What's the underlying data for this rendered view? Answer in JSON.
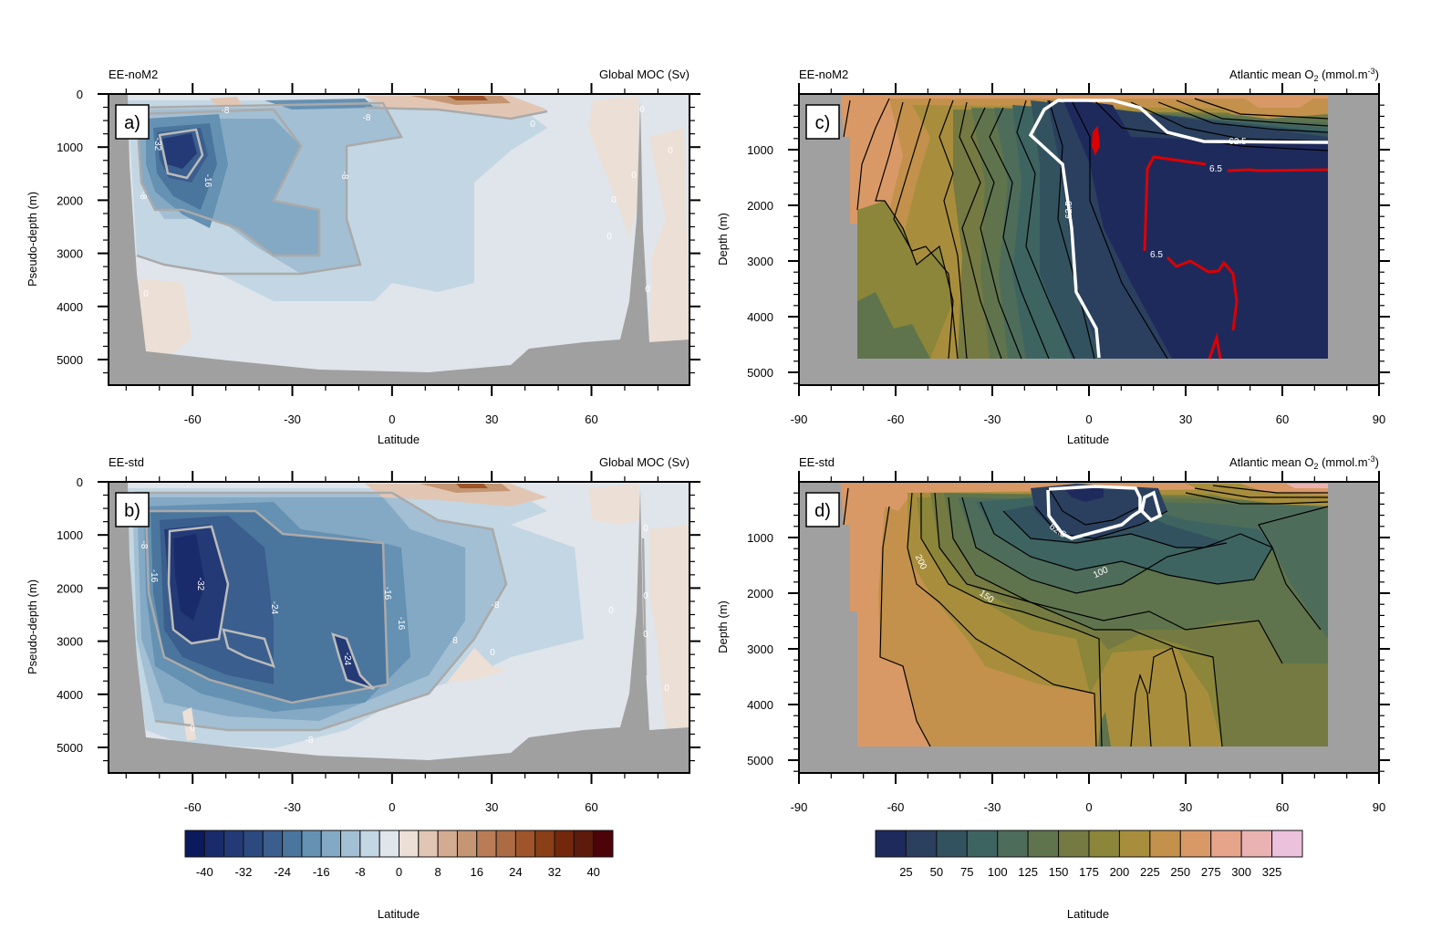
{
  "figure": {
    "panels": [
      {
        "id": "a",
        "label": "a)",
        "run": "EE-noM2",
        "title": "Global MOC (Sv)",
        "xlabel": "Latitude",
        "ylabel": "Pseudo-depth (m)",
        "xticks": [
          -60,
          -30,
          0,
          30,
          60
        ],
        "yticks": [
          0,
          1000,
          2000,
          3000,
          4000,
          5000
        ],
        "show_zero_ytick": true
      },
      {
        "id": "b",
        "label": "b)",
        "run": "EE-std",
        "title": "Global MOC (Sv)",
        "xlabel": "",
        "ylabel": "Pseudo-depth (m)",
        "xticks": [
          -60,
          -30,
          0,
          30,
          60
        ],
        "yticks": [
          0,
          1000,
          2000,
          3000,
          4000,
          5000
        ],
        "show_zero_ytick": true
      },
      {
        "id": "c",
        "label": "c)",
        "run": "EE-noM2",
        "title": "Atlantic mean O",
        "title_sub": "2",
        "title_unit": " (mmol.m",
        "title_sup": "-3",
        "title_end": ")",
        "xlabel": "Latitude",
        "ylabel": "Depth (m)",
        "xticks": [
          -90,
          -60,
          -30,
          0,
          30,
          60,
          90
        ],
        "yticks": [
          1000,
          2000,
          3000,
          4000,
          5000
        ],
        "show_zero_ytick": false
      },
      {
        "id": "d",
        "label": "d)",
        "run": "EE-std",
        "title": "Atlantic mean O",
        "title_sub": "2",
        "title_unit": " (mmol.m",
        "title_sup": "-3",
        "title_end": ")",
        "xlabel": "",
        "ylabel": "Depth (m)",
        "xticks": [
          -90,
          -60,
          -30,
          0,
          30,
          60,
          90
        ],
        "yticks": [
          1000,
          2000,
          3000,
          4000,
          5000
        ],
        "show_zero_ytick": false
      }
    ],
    "colorbars": [
      {
        "id": "moc",
        "labels": [
          "-40",
          "-32",
          "-24",
          "-16",
          "-8",
          "0",
          "8",
          "16",
          "24",
          "32",
          "40"
        ],
        "caption": "Latitude",
        "colors": [
          "#0b1a5c",
          "#1a2b6b",
          "#233a76",
          "#2c4a80",
          "#3a5e8e",
          "#4a769d",
          "#6591b3",
          "#84a9c4",
          "#a3bfd3",
          "#c3d6e3",
          "#dfe5ea",
          "#ecdfd6",
          "#e2c6b4",
          "#d3ab90",
          "#c59673",
          "#b97c56",
          "#ac6b42",
          "#9f5529",
          "#8a3f17",
          "#73270b",
          "#5e1a0a",
          "#4d0409"
        ]
      },
      {
        "id": "o2",
        "labels": [
          "25",
          "50",
          "75",
          "100",
          "125",
          "150",
          "175",
          "200",
          "225",
          "250",
          "275",
          "300",
          "325"
        ],
        "caption": "Latitude",
        "colors": [
          "#1f2a5c",
          "#2b405f",
          "#33525f",
          "#3e6461",
          "#4e6c5a",
          "#5f744d",
          "#747a42",
          "#8b8639",
          "#a88e3c",
          "#c3914b",
          "#d99967",
          "#e6a58a",
          "#eab2b2",
          "#ecc1dc"
        ]
      }
    ]
  },
  "chart_data": [
    {
      "type": "heatmap",
      "panel": "a",
      "title": "Global MOC (Sv)",
      "subtitle": "EE-noM2",
      "xlabel": "Latitude",
      "ylabel": "Pseudo-depth (m)",
      "xlim": [
        -85,
        90
      ],
      "ylim": [
        5500,
        0
      ],
      "x_ticks": [
        -60,
        -30,
        0,
        30,
        60
      ],
      "y_ticks": [
        0,
        1000,
        2000,
        3000,
        4000,
        5000
      ],
      "contour_labels": [
        "-32",
        "-16",
        "-8",
        "-8",
        "-8",
        "-8",
        "0",
        "0",
        "0",
        "0",
        "0",
        "0",
        "0"
      ],
      "features": {
        "min_cell": {
          "lat": -67,
          "depth": 900,
          "value": -36
        },
        "max_positive_cell": {
          "lat": 20,
          "depth": 150,
          "value": 28
        }
      }
    },
    {
      "type": "heatmap",
      "panel": "b",
      "title": "Global MOC (Sv)",
      "subtitle": "EE-std",
      "xlabel": "Latitude",
      "ylabel": "Pseudo-depth (m)",
      "xlim": [
        -85,
        90
      ],
      "ylim": [
        5500,
        0
      ],
      "x_ticks": [
        -60,
        -30,
        0,
        30,
        60
      ],
      "y_ticks": [
        0,
        1000,
        2000,
        3000,
        4000,
        5000
      ],
      "contour_labels": [
        "-32",
        "-24",
        "-24",
        "-16",
        "-16",
        "-16",
        "-8",
        "-8",
        "-8",
        "-8",
        "0",
        "0",
        "0",
        "0",
        "0",
        "0",
        "0"
      ],
      "features": {
        "min_cell": {
          "lat": -62,
          "depth": 1900,
          "value": -36
        },
        "max_positive_cell": {
          "lat": 20,
          "depth": 150,
          "value": 28
        }
      }
    },
    {
      "type": "heatmap",
      "panel": "c",
      "title": "Atlantic mean O2 (mmol.m-3)",
      "subtitle": "EE-noM2",
      "xlabel": "Latitude",
      "ylabel": "Depth (m)",
      "xlim": [
        -90,
        90
      ],
      "ylim": [
        5300,
        0
      ],
      "x_ticks": [
        -90,
        -60,
        -30,
        0,
        30,
        60,
        90
      ],
      "y_ticks": [
        1000,
        2000,
        3000,
        4000,
        5000
      ],
      "highlight_contours": [
        {
          "value": 62.5,
          "color": "#ffffff"
        },
        {
          "value": 6.5,
          "color": "#dd0000"
        }
      ],
      "colorbar_levels": [
        25,
        50,
        75,
        100,
        125,
        150,
        175,
        200,
        225,
        250,
        275,
        300,
        325
      ]
    },
    {
      "type": "heatmap",
      "panel": "d",
      "title": "Atlantic mean O2 (mmol.m-3)",
      "subtitle": "EE-std",
      "xlabel": "Latitude",
      "ylabel": "Depth (m)",
      "xlim": [
        -90,
        90
      ],
      "ylim": [
        5300,
        0
      ],
      "x_ticks": [
        -90,
        -60,
        -30,
        0,
        30,
        60,
        90
      ],
      "y_ticks": [
        1000,
        2000,
        3000,
        4000,
        5000
      ],
      "contour_labels": [
        "62.5",
        "100",
        "150",
        "200"
      ],
      "highlight_contours": [
        {
          "value": 62.5,
          "color": "#ffffff"
        }
      ],
      "colorbar_levels": [
        25,
        50,
        75,
        100,
        125,
        150,
        175,
        200,
        225,
        250,
        275,
        300,
        325
      ]
    },
    {
      "type": "table",
      "name": "MOC colorbar",
      "values": [
        -44,
        -40,
        -36,
        -32,
        -28,
        -24,
        -20,
        -16,
        -12,
        -8,
        -4,
        0,
        4,
        8,
        12,
        16,
        20,
        24,
        28,
        32,
        36,
        40,
        44
      ],
      "tick_labels": [
        -40,
        -32,
        -24,
        -16,
        -8,
        0,
        8,
        16,
        24,
        32,
        40
      ]
    },
    {
      "type": "table",
      "name": "O2 colorbar",
      "values": [
        0,
        25,
        50,
        75,
        100,
        125,
        150,
        175,
        200,
        225,
        250,
        275,
        300,
        325,
        350
      ],
      "tick_labels": [
        25,
        50,
        75,
        100,
        125,
        150,
        175,
        200,
        225,
        250,
        275,
        300,
        325
      ]
    }
  ]
}
